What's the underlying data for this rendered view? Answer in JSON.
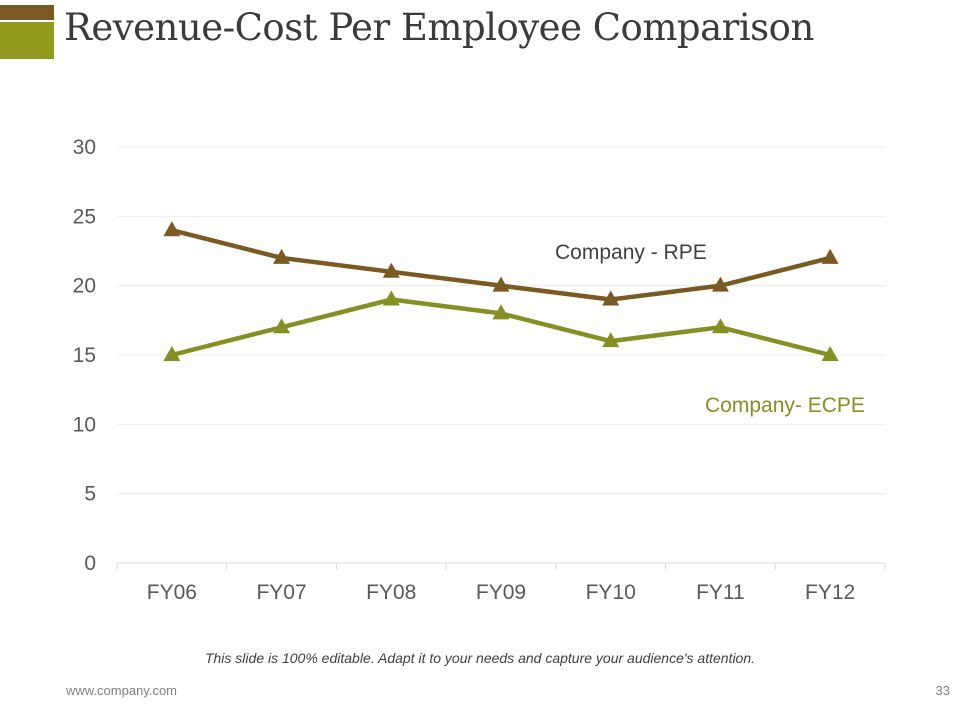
{
  "slide": {
    "title": "Revenue-Cost Per Employee Comparison",
    "footer_note": "This slide is 100% editable. Adapt it to your needs and capture your audience's attention.",
    "website": "www.company.com",
    "page_number": "33"
  },
  "colors": {
    "accent_dark": "#7a5a22",
    "accent_green": "#8f9a1e",
    "rpe": "#7a5a22",
    "ecpe": "#849023"
  },
  "chart_data": {
    "type": "line",
    "title": "",
    "xlabel": "",
    "ylabel": "",
    "categories": [
      "FY06",
      "FY07",
      "FY08",
      "FY09",
      "FY10",
      "FY11",
      "FY12"
    ],
    "ylim": [
      0,
      30
    ],
    "yticks": [
      0,
      5,
      10,
      15,
      20,
      25,
      30
    ],
    "grid": true,
    "series": [
      {
        "name": "Company - RPE",
        "values": [
          24,
          22,
          21,
          20,
          19,
          20,
          22
        ],
        "color": "#7a5a22",
        "marker": "triangle"
      },
      {
        "name": "Company- ECPE",
        "values": [
          15,
          17,
          19,
          18,
          16,
          17,
          15
        ],
        "color": "#849023",
        "marker": "triangle"
      }
    ]
  }
}
